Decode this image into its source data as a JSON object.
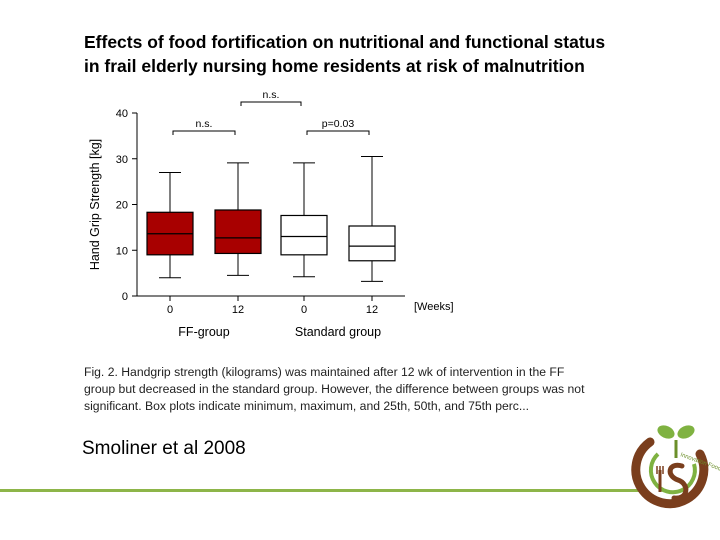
{
  "title": {
    "line1": "Effects of food fortification on nutritional and functional status",
    "line2": "in frail elderly nursing home residents at risk of malnutrition"
  },
  "chart_data": {
    "type": "box",
    "ylabel": "Hand Grip Strength [kg]",
    "ylim": [
      0,
      40
    ],
    "yticks": [
      0,
      10,
      20,
      30,
      40
    ],
    "x_unit_label": "[Weeks]",
    "groups": [
      {
        "name": "FF-group",
        "categories": [
          "0",
          "12"
        ]
      },
      {
        "name": "Standard group",
        "categories": [
          "0",
          "12"
        ]
      }
    ],
    "boxes": [
      {
        "group": "FF-group",
        "category": "0",
        "min": 4,
        "q1": 9,
        "median": 13.6,
        "q3": 18.3,
        "max": 27,
        "fill": "#a80000"
      },
      {
        "group": "FF-group",
        "category": "12",
        "min": 4.5,
        "q1": 9.3,
        "median": 12.7,
        "q3": 18.8,
        "max": 29.1,
        "fill": "#a80000"
      },
      {
        "group": "Standard group",
        "category": "0",
        "min": 4.2,
        "q1": 9,
        "median": 13,
        "q3": 17.6,
        "max": 29.1,
        "fill": "#ffffff"
      },
      {
        "group": "Standard group",
        "category": "12",
        "min": 3.2,
        "q1": 7.7,
        "median": 10.9,
        "q3": 15.3,
        "max": 30.5,
        "fill": "#ffffff"
      }
    ],
    "annotations": [
      {
        "text": "n.s.",
        "from": 0,
        "to": 1
      },
      {
        "text": "p=0.03",
        "from": 2,
        "to": 3
      },
      {
        "text": "n.s.",
        "from": 1,
        "to": 2
      }
    ]
  },
  "caption": {
    "line1": "Fig. 2. Handgrip strength (kilograms) was maintained after 12 wk of intervention in the FF",
    "line2": "group but decreased in the standard group. However, the difference between groups was not",
    "line3": "significant. Box plots indicate minimum, maximum, and 25th, 50th, and 75th perc..."
  },
  "citation": "Smoliner et al 2008",
  "colors": {
    "ff_box": "#a80000",
    "standard_box": "#ffffff",
    "footer_line": "#8db549",
    "logo_brown": "#7a3e1d",
    "logo_green": "#7fb241"
  },
  "logo": {
    "text": "Innovation Food Nutrition",
    "icon": "leaf-sprout-logo-icon"
  }
}
